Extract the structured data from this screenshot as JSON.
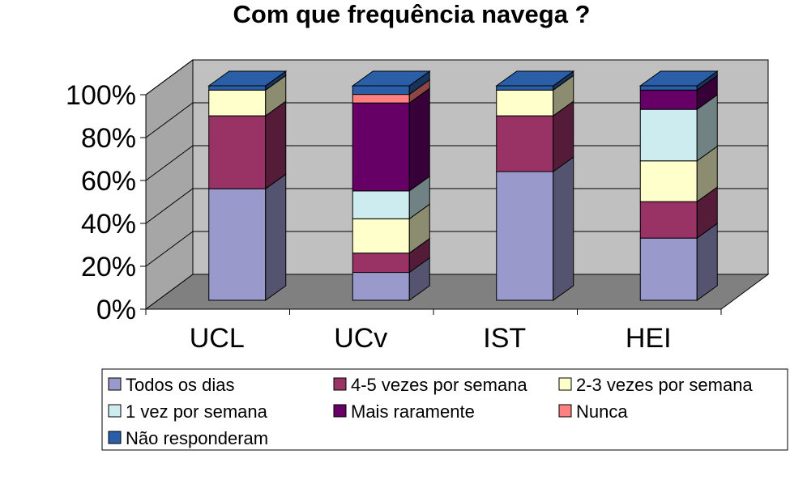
{
  "chart_data": {
    "type": "bar",
    "stacked": true,
    "percent_stacked": true,
    "three_d": true,
    "title": "Com que frequência navega ?",
    "categories": [
      "UCL",
      "UCv",
      "IST",
      "HEI"
    ],
    "y_ticks": [
      "0%",
      "20%",
      "40%",
      "60%",
      "80%",
      "100%"
    ],
    "ylim": [
      0,
      100
    ],
    "grid": true,
    "legend_position": "bottom",
    "series": [
      {
        "name": "Todos os dias",
        "color": "#9999cc",
        "values": [
          52,
          13,
          60,
          29
        ]
      },
      {
        "name": "4-5 vezes por semana",
        "color": "#993366",
        "values": [
          34,
          9,
          26,
          17
        ]
      },
      {
        "name": "2-3 vezes por semana",
        "color": "#ffffcc",
        "values": [
          12,
          16,
          12,
          19
        ]
      },
      {
        "name": "1 vez por semana",
        "color": "#ccecf0",
        "values": [
          0,
          13,
          0,
          24
        ]
      },
      {
        "name": "Mais raramente",
        "color": "#660066",
        "values": [
          0,
          41,
          0,
          9
        ]
      },
      {
        "name": "Nunca",
        "color": "#ff8080",
        "values": [
          0,
          4,
          0,
          0
        ]
      },
      {
        "name": "Não responderam",
        "color": "#2a5fa8",
        "values": [
          2,
          4,
          2,
          2
        ]
      }
    ]
  }
}
